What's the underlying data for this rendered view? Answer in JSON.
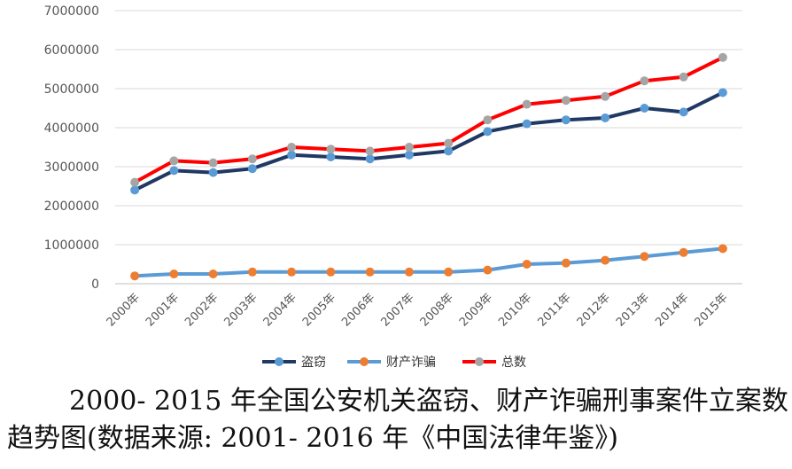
{
  "chart_data": {
    "type": "line",
    "categories": [
      "2000年",
      "2001年",
      "2002年",
      "2003年",
      "2004年",
      "2005年",
      "2006年",
      "2007年",
      "2008年",
      "2009年",
      "2010年",
      "2011年",
      "2012年",
      "2013年",
      "2014年",
      "2015年"
    ],
    "ylim": [
      0,
      7000000
    ],
    "yticks": [
      0,
      1000000,
      2000000,
      3000000,
      4000000,
      5000000,
      6000000,
      7000000
    ],
    "grid": true,
    "legend_position": "bottom",
    "series": [
      {
        "name": "盗窃",
        "line_color": "#1f3864",
        "marker_color": "#5b9bd5",
        "values": [
          2400000,
          2900000,
          2850000,
          2950000,
          3300000,
          3250000,
          3200000,
          3300000,
          3400000,
          3900000,
          4100000,
          4200000,
          4250000,
          4500000,
          4400000,
          4900000
        ]
      },
      {
        "name": "财产诈骗",
        "line_color": "#5b9bd5",
        "marker_color": "#ed7d31",
        "values": [
          200000,
          250000,
          250000,
          300000,
          300000,
          300000,
          300000,
          300000,
          300000,
          350000,
          500000,
          530000,
          600000,
          700000,
          800000,
          900000
        ]
      },
      {
        "name": "总数",
        "line_color": "#ff0000",
        "marker_color": "#a5a5a5",
        "values": [
          2600000,
          3150000,
          3100000,
          3200000,
          3500000,
          3450000,
          3400000,
          3500000,
          3600000,
          4200000,
          4600000,
          4700000,
          4800000,
          5200000,
          5300000,
          5800000
        ]
      }
    ]
  },
  "caption": {
    "line1": "2000- 2015 年全国公安机关盗窃、财产诈骗刑事案件立案数",
    "line2": "趋势图(数据来源: 2001- 2016 年《中国法律年鉴》)"
  }
}
